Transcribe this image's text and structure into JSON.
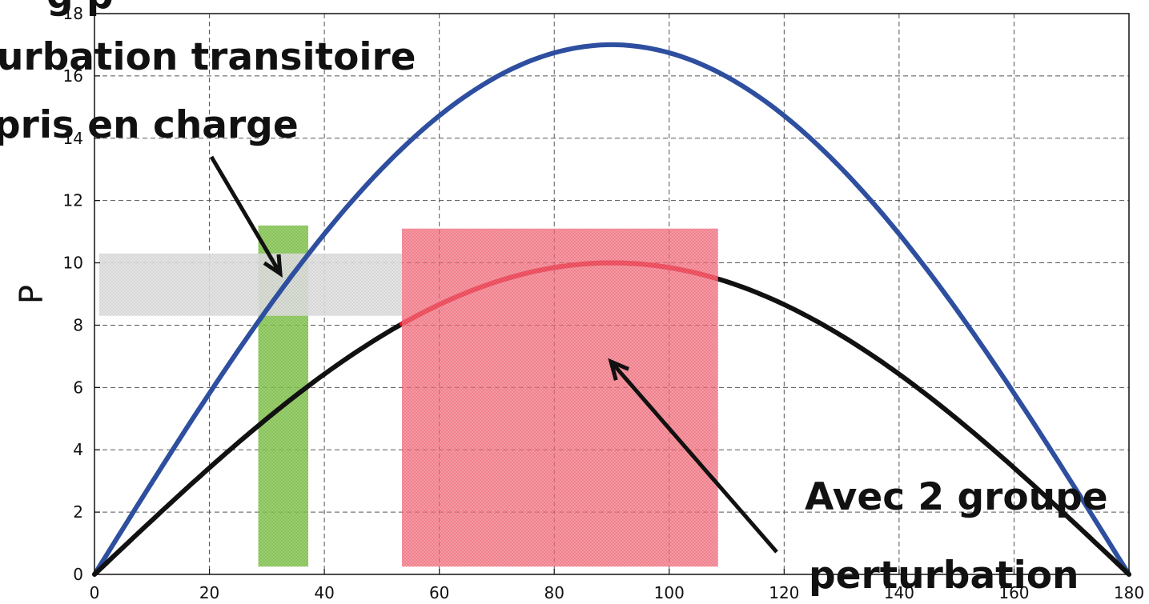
{
  "chart_data": {
    "type": "line",
    "title": "",
    "xlabel": "",
    "ylabel": "P",
    "xlim": [
      0,
      180
    ],
    "ylim": [
      0,
      18
    ],
    "x_ticks": [
      0,
      20,
      40,
      60,
      80,
      100,
      120,
      140,
      160,
      180
    ],
    "y_ticks": [
      0,
      2,
      4,
      6,
      8,
      10,
      12,
      14,
      16,
      18
    ],
    "grid": true,
    "series": [
      {
        "color": "#2e4f9f",
        "x": [
          0,
          10,
          20,
          30,
          40,
          50,
          60,
          70,
          80,
          90,
          100,
          110,
          120,
          130,
          140,
          150,
          160,
          170,
          180
        ],
        "y": [
          0,
          2.95,
          5.81,
          8.5,
          10.93,
          13.02,
          14.72,
          15.98,
          16.75,
          17.0,
          16.75,
          15.98,
          14.72,
          13.02,
          10.93,
          8.5,
          5.81,
          2.95,
          0
        ]
      },
      {
        "color": "#111111",
        "x": [
          0,
          10,
          20,
          30,
          40,
          50,
          60,
          70,
          80,
          90,
          100,
          110,
          120,
          130,
          140,
          150,
          160,
          170,
          180
        ],
        "y": [
          0,
          1.74,
          3.42,
          5.0,
          6.43,
          7.66,
          8.66,
          9.4,
          9.85,
          10.0,
          9.85,
          9.4,
          8.66,
          7.66,
          6.43,
          5.0,
          3.42,
          1.74,
          0
        ]
      }
    ],
    "highlight_segment": {
      "series": 1,
      "x_range": [
        53.5,
        108
      ],
      "color": "#e8162a"
    },
    "regions": [
      {
        "name": "green-band",
        "x_range": [
          28.5,
          37.2
        ],
        "y_range": [
          0.25,
          11.2
        ],
        "color": "#7dc242"
      },
      {
        "name": "grey-band",
        "x_range": [
          0.8,
          53.5
        ],
        "y_range": [
          8.3,
          10.3
        ],
        "color": "#c8c8c8"
      },
      {
        "name": "red-band",
        "x_range": [
          53.5,
          108.5
        ],
        "y_range": [
          0.25,
          11.1
        ],
        "color": "#f0485a"
      }
    ],
    "annotations": [
      {
        "lines": [
          "g p",
          "urbation transitoire",
          "pris en charge"
        ]
      },
      {
        "lines": [
          "Avec 2 groupe",
          "perturbation"
        ]
      }
    ]
  }
}
